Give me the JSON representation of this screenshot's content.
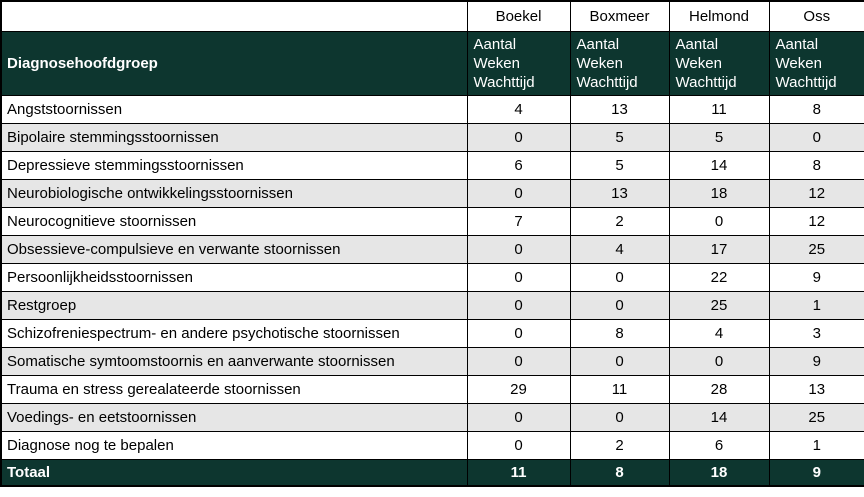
{
  "table": {
    "locations": [
      "Boekel",
      "Boxmeer",
      "Helmond",
      "Oss"
    ],
    "diagnosis_column_header": "Diagnosehoofdgroep",
    "metric_header": "Aantal Weken Wachttijd",
    "rows": [
      {
        "label": "Angststoornissen",
        "values": [
          "4",
          "13",
          "11",
          "8"
        ]
      },
      {
        "label": "Bipolaire stemmingsstoornissen",
        "values": [
          "0",
          "5",
          "5",
          "0"
        ]
      },
      {
        "label": "Depressieve stemmingsstoornissen",
        "values": [
          "6",
          "5",
          "14",
          "8"
        ]
      },
      {
        "label": "Neurobiologische ontwikkelingsstoornissen",
        "values": [
          "0",
          "13",
          "18",
          "12"
        ]
      },
      {
        "label": "Neurocognitieve stoornissen",
        "values": [
          "7",
          "2",
          "0",
          "12"
        ]
      },
      {
        "label": "Obsessieve-compulsieve en verwante stoornissen",
        "values": [
          "0",
          "4",
          "17",
          "25"
        ]
      },
      {
        "label": "Persoonlijkheidsstoornissen",
        "values": [
          "0",
          "0",
          "22",
          "9"
        ]
      },
      {
        "label": "Restgroep",
        "values": [
          "0",
          "0",
          "25",
          "1"
        ]
      },
      {
        "label": "Schizofreniespectrum- en andere psychotische stoornissen",
        "values": [
          "0",
          "8",
          "4",
          "3"
        ]
      },
      {
        "label": "Somatische symtoomstoornis en aanverwante stoornissen",
        "values": [
          "0",
          "0",
          "0",
          "9"
        ]
      },
      {
        "label": "Trauma en stress gerealateerde stoornissen",
        "values": [
          "29",
          "11",
          "28",
          "13"
        ]
      },
      {
        "label": "Voedings- en eetstoornissen",
        "values": [
          "0",
          "0",
          "14",
          "25"
        ]
      },
      {
        "label": "Diagnose nog te bepalen",
        "values": [
          "0",
          "2",
          "6",
          "1"
        ]
      }
    ],
    "total": {
      "label": "Totaal",
      "values": [
        "11",
        "8",
        "18",
        "9"
      ]
    }
  },
  "colors": {
    "header_bg": "#0d362f",
    "header_text": "#ffffff",
    "row_alt_bg": "#e6e6e6",
    "row_bg": "#ffffff",
    "border": "#000000",
    "text": "#000000"
  },
  "chart_data": {
    "type": "table",
    "title": "",
    "row_header": "Diagnosehoofdgroep",
    "value_label": "Aantal Weken Wachttijd",
    "categories": [
      "Angststoornissen",
      "Bipolaire stemmingsstoornissen",
      "Depressieve stemmingsstoornissen",
      "Neurobiologische ontwikkelingsstoornissen",
      "Neurocognitieve stoornissen",
      "Obsessieve-compulsieve en verwante stoornissen",
      "Persoonlijkheidsstoornissen",
      "Restgroep",
      "Schizofreniespectrum- en andere psychotische stoornissen",
      "Somatische symtoomstoornis en aanverwante stoornissen",
      "Trauma en stress gerealateerde stoornissen",
      "Voedings- en eetstoornissen",
      "Diagnose nog te bepalen"
    ],
    "series": [
      {
        "name": "Boekel",
        "values": [
          4,
          0,
          6,
          0,
          7,
          0,
          0,
          0,
          0,
          0,
          29,
          0,
          0
        ],
        "total": 11
      },
      {
        "name": "Boxmeer",
        "values": [
          13,
          5,
          5,
          13,
          2,
          4,
          0,
          0,
          8,
          0,
          11,
          0,
          2
        ],
        "total": 8
      },
      {
        "name": "Helmond",
        "values": [
          11,
          5,
          14,
          18,
          0,
          17,
          22,
          25,
          4,
          0,
          28,
          14,
          6
        ],
        "total": 18
      },
      {
        "name": "Oss",
        "values": [
          8,
          0,
          8,
          12,
          12,
          25,
          9,
          1,
          3,
          9,
          13,
          25,
          1
        ],
        "total": 9
      }
    ]
  }
}
